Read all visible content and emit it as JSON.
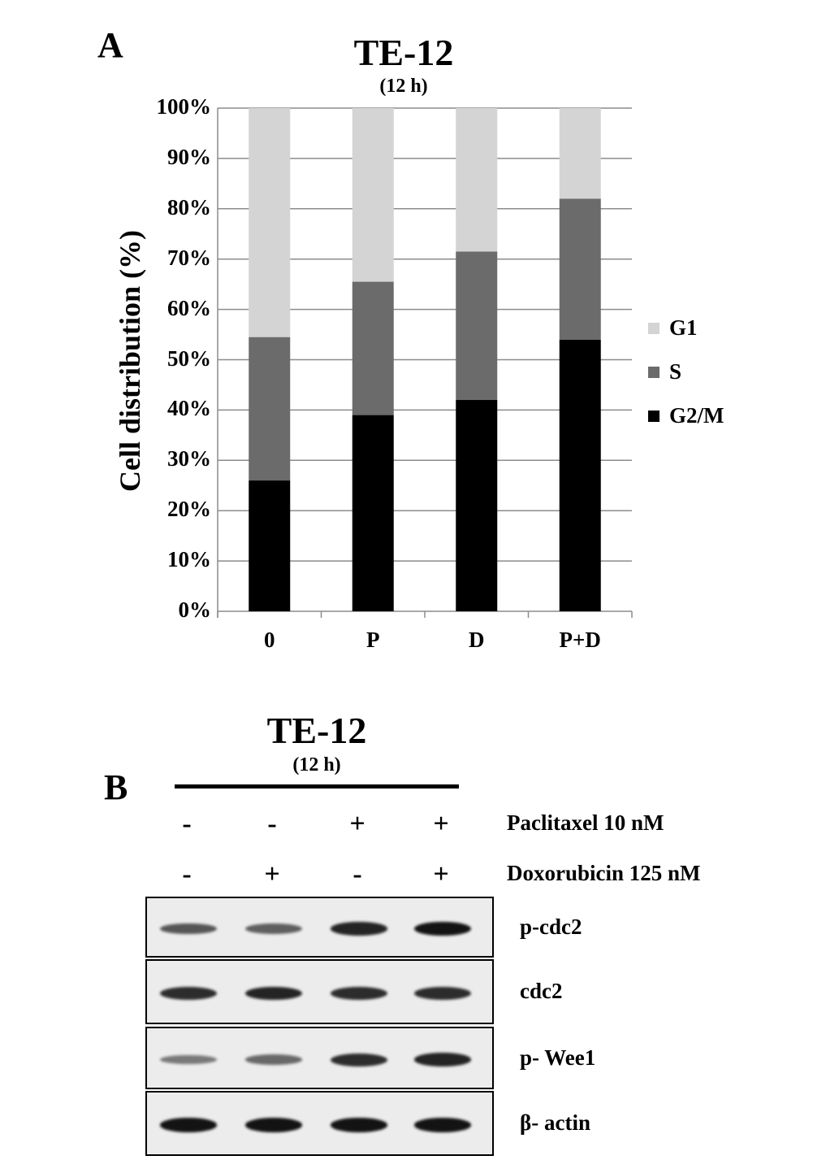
{
  "panel_a": {
    "letter": "A",
    "chart_data": {
      "type": "bar",
      "stacked": true,
      "title": "TE-12",
      "subtitle": "(12 h)",
      "xlabel": "",
      "ylabel": "Cell distribution  (%)",
      "ylim": [
        0,
        100
      ],
      "yticks": [
        "0%",
        "10%",
        "20%",
        "30%",
        "40%",
        "50%",
        "60%",
        "70%",
        "80%",
        "90%",
        "100%"
      ],
      "categories": [
        "0",
        "P",
        "D",
        "P+D"
      ],
      "series": [
        {
          "name": "G2/M",
          "color": "#000000",
          "values": [
            26,
            39,
            42,
            54
          ]
        },
        {
          "name": "S",
          "color": "#6b6b6b",
          "values": [
            28.5,
            26.5,
            29.5,
            28
          ]
        },
        {
          "name": "G1",
          "color": "#d4d4d4",
          "values": [
            45.5,
            34.5,
            28.5,
            18
          ]
        }
      ],
      "legend": {
        "position": "right",
        "order": [
          "G1",
          "S",
          "G2/M"
        ]
      },
      "grid": true
    }
  },
  "panel_b": {
    "letter": "B",
    "title": "TE-12",
    "subtitle": "(12 h)",
    "conditions": [
      {
        "label": "Paclitaxel 10 nM",
        "signs": [
          "-",
          "-",
          "+",
          "+"
        ]
      },
      {
        "label": "Doxorubicin  125 nM",
        "signs": [
          "-",
          "+",
          "-",
          "+"
        ]
      }
    ],
    "blots": [
      {
        "label": "p-cdc2",
        "intensity": [
          0.55,
          0.5,
          0.85,
          0.95
        ]
      },
      {
        "label": "cdc2",
        "intensity": [
          0.8,
          0.85,
          0.8,
          0.8
        ]
      },
      {
        "label": "p- Wee1",
        "intensity": [
          0.35,
          0.45,
          0.8,
          0.85
        ]
      },
      {
        "label": "β- actin",
        "intensity": [
          0.95,
          0.95,
          0.95,
          0.95
        ]
      }
    ]
  }
}
